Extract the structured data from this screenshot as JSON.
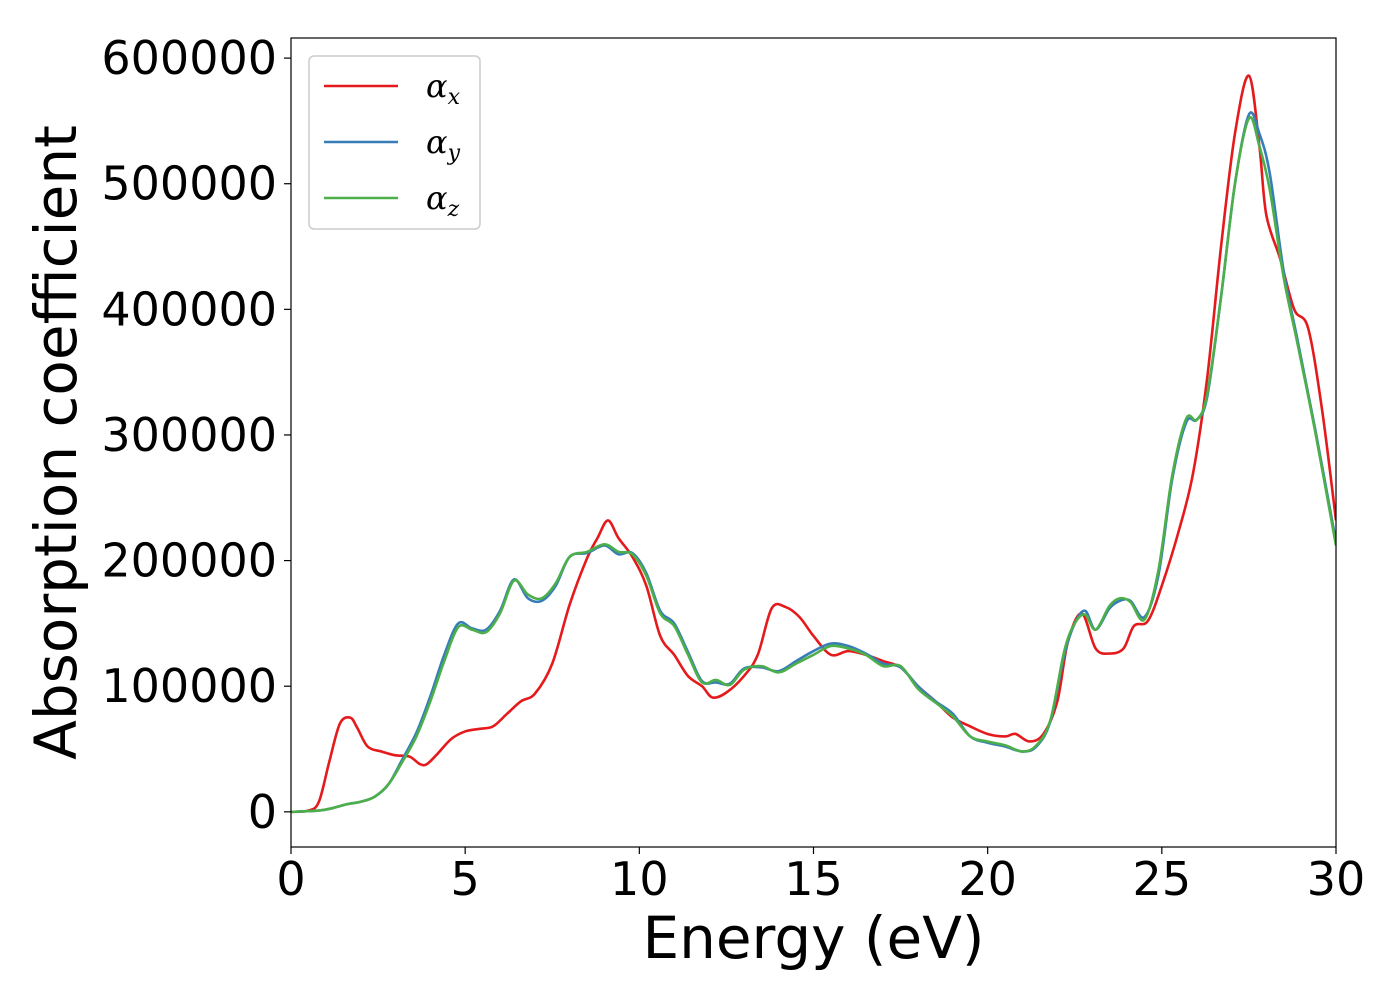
{
  "chart_data": {
    "type": "line",
    "xlabel": "Energy (eV)",
    "ylabel": "Absorption coefficient",
    "xlim": [
      0,
      30
    ],
    "ylim": [
      -28000,
      616000
    ],
    "x_ticks": [
      "0",
      "5",
      "10",
      "15",
      "20",
      "25",
      "30"
    ],
    "y_ticks": [
      "0",
      "100000",
      "200000",
      "300000",
      "400000",
      "500000",
      "600000"
    ],
    "grid": false,
    "legend_position": "top-left",
    "series": [
      {
        "name": "α",
        "subscript": "x",
        "color": "#e41a1c",
        "points": [
          [
            0,
            0
          ],
          [
            0.5,
            1000
          ],
          [
            0.8,
            8000
          ],
          [
            1.1,
            40000
          ],
          [
            1.4,
            70000
          ],
          [
            1.7,
            75000
          ],
          [
            1.9,
            67000
          ],
          [
            2.2,
            52000
          ],
          [
            2.6,
            48000
          ],
          [
            3,
            45000
          ],
          [
            3.4,
            44000
          ],
          [
            3.7,
            38000
          ],
          [
            3.9,
            38000
          ],
          [
            4.2,
            46000
          ],
          [
            4.6,
            58000
          ],
          [
            5.0,
            64000
          ],
          [
            5.4,
            66000
          ],
          [
            5.8,
            68000
          ],
          [
            6.2,
            78000
          ],
          [
            6.6,
            88000
          ],
          [
            7.0,
            94000
          ],
          [
            7.5,
            118000
          ],
          [
            8.0,
            165000
          ],
          [
            8.5,
            202000
          ],
          [
            8.8,
            218000
          ],
          [
            9.1,
            232000
          ],
          [
            9.4,
            218000
          ],
          [
            9.8,
            203000
          ],
          [
            10.2,
            180000
          ],
          [
            10.6,
            140000
          ],
          [
            11.0,
            125000
          ],
          [
            11.4,
            108000
          ],
          [
            11.8,
            100000
          ],
          [
            12.1,
            91000
          ],
          [
            12.5,
            95000
          ],
          [
            13.0,
            108000
          ],
          [
            13.4,
            125000
          ],
          [
            13.8,
            162000
          ],
          [
            14.2,
            163000
          ],
          [
            14.6,
            155000
          ],
          [
            15.0,
            140000
          ],
          [
            15.5,
            125000
          ],
          [
            16.0,
            128000
          ],
          [
            16.5,
            125000
          ],
          [
            17.0,
            120000
          ],
          [
            17.5,
            115000
          ],
          [
            18.0,
            100000
          ],
          [
            18.5,
            88000
          ],
          [
            19.0,
            75000
          ],
          [
            19.5,
            68000
          ],
          [
            20.0,
            62000
          ],
          [
            20.5,
            60000
          ],
          [
            20.8,
            62000
          ],
          [
            21.2,
            56000
          ],
          [
            21.6,
            62000
          ],
          [
            22.0,
            88000
          ],
          [
            22.3,
            135000
          ],
          [
            22.7,
            158000
          ],
          [
            23.1,
            130000
          ],
          [
            23.5,
            126000
          ],
          [
            23.9,
            130000
          ],
          [
            24.2,
            148000
          ],
          [
            24.6,
            152000
          ],
          [
            25.0,
            180000
          ],
          [
            25.5,
            225000
          ],
          [
            25.9,
            270000
          ],
          [
            26.3,
            345000
          ],
          [
            26.7,
            450000
          ],
          [
            27.1,
            540000
          ],
          [
            27.5,
            586000
          ],
          [
            27.8,
            530000
          ],
          [
            28.0,
            475000
          ],
          [
            28.4,
            440000
          ],
          [
            28.8,
            400000
          ],
          [
            29.2,
            385000
          ],
          [
            29.6,
            320000
          ],
          [
            30.0,
            232000
          ]
        ]
      },
      {
        "name": "α",
        "subscript": "y",
        "color": "#377eb8",
        "points": [
          [
            0,
            0
          ],
          [
            0.8,
            1000
          ],
          [
            1.2,
            3000
          ],
          [
            1.6,
            6000
          ],
          [
            2.0,
            8000
          ],
          [
            2.4,
            12000
          ],
          [
            2.8,
            22000
          ],
          [
            3.2,
            42000
          ],
          [
            3.6,
            63000
          ],
          [
            4.0,
            92000
          ],
          [
            4.4,
            125000
          ],
          [
            4.8,
            150000
          ],
          [
            5.2,
            146000
          ],
          [
            5.6,
            145000
          ],
          [
            6.0,
            160000
          ],
          [
            6.4,
            185000
          ],
          [
            6.8,
            170000
          ],
          [
            7.2,
            168000
          ],
          [
            7.6,
            180000
          ],
          [
            8.0,
            203000
          ],
          [
            8.5,
            206000
          ],
          [
            9.0,
            212000
          ],
          [
            9.4,
            205000
          ],
          [
            9.8,
            206000
          ],
          [
            10.2,
            190000
          ],
          [
            10.6,
            160000
          ],
          [
            11.0,
            150000
          ],
          [
            11.4,
            127000
          ],
          [
            11.8,
            104000
          ],
          [
            12.2,
            103000
          ],
          [
            12.6,
            102000
          ],
          [
            13.0,
            114000
          ],
          [
            13.5,
            115000
          ],
          [
            14.0,
            112000
          ],
          [
            14.5,
            120000
          ],
          [
            15.0,
            128000
          ],
          [
            15.5,
            134000
          ],
          [
            16.0,
            132000
          ],
          [
            16.5,
            126000
          ],
          [
            17.0,
            118000
          ],
          [
            17.5,
            115000
          ],
          [
            18.0,
            100000
          ],
          [
            18.5,
            88000
          ],
          [
            19.0,
            78000
          ],
          [
            19.5,
            60000
          ],
          [
            20.0,
            55000
          ],
          [
            20.5,
            52000
          ],
          [
            21.0,
            48000
          ],
          [
            21.4,
            52000
          ],
          [
            21.8,
            72000
          ],
          [
            22.2,
            125000
          ],
          [
            22.5,
            150000
          ],
          [
            22.8,
            160000
          ],
          [
            23.1,
            145000
          ],
          [
            23.5,
            162000
          ],
          [
            23.8,
            168000
          ],
          [
            24.1,
            168000
          ],
          [
            24.5,
            155000
          ],
          [
            24.9,
            188000
          ],
          [
            25.3,
            265000
          ],
          [
            25.7,
            310000
          ],
          [
            26.0,
            312000
          ],
          [
            26.3,
            330000
          ],
          [
            26.7,
            410000
          ],
          [
            27.1,
            500000
          ],
          [
            27.5,
            555000
          ],
          [
            27.8,
            540000
          ],
          [
            28.1,
            508000
          ],
          [
            28.5,
            430000
          ],
          [
            28.9,
            375000
          ],
          [
            29.4,
            305000
          ],
          [
            30.0,
            215000
          ]
        ]
      },
      {
        "name": "α",
        "subscript": "z",
        "color": "#4daf4a",
        "points": [
          [
            0,
            0
          ],
          [
            0.8,
            1000
          ],
          [
            1.2,
            3000
          ],
          [
            1.6,
            6000
          ],
          [
            2.0,
            8000
          ],
          [
            2.4,
            12000
          ],
          [
            2.8,
            22000
          ],
          [
            3.2,
            40000
          ],
          [
            3.6,
            60000
          ],
          [
            4.0,
            88000
          ],
          [
            4.4,
            120000
          ],
          [
            4.8,
            147000
          ],
          [
            5.2,
            145000
          ],
          [
            5.6,
            143000
          ],
          [
            6.0,
            158000
          ],
          [
            6.4,
            184000
          ],
          [
            6.8,
            173000
          ],
          [
            7.2,
            170000
          ],
          [
            7.6,
            182000
          ],
          [
            8.0,
            203000
          ],
          [
            8.5,
            207000
          ],
          [
            9.0,
            213000
          ],
          [
            9.4,
            207000
          ],
          [
            9.8,
            205000
          ],
          [
            10.2,
            188000
          ],
          [
            10.6,
            158000
          ],
          [
            11.0,
            148000
          ],
          [
            11.4,
            125000
          ],
          [
            11.8,
            103000
          ],
          [
            12.2,
            105000
          ],
          [
            12.6,
            101000
          ],
          [
            13.0,
            113000
          ],
          [
            13.5,
            116000
          ],
          [
            14.0,
            111000
          ],
          [
            14.5,
            118000
          ],
          [
            15.0,
            125000
          ],
          [
            15.5,
            132000
          ],
          [
            16.0,
            130000
          ],
          [
            16.5,
            125000
          ],
          [
            17.0,
            116000
          ],
          [
            17.5,
            116000
          ],
          [
            18.0,
            98000
          ],
          [
            18.5,
            87000
          ],
          [
            19.0,
            76000
          ],
          [
            19.5,
            60000
          ],
          [
            20.0,
            56000
          ],
          [
            20.5,
            53000
          ],
          [
            21.0,
            48000
          ],
          [
            21.4,
            53000
          ],
          [
            21.8,
            73000
          ],
          [
            22.2,
            128000
          ],
          [
            22.5,
            150000
          ],
          [
            22.8,
            157000
          ],
          [
            23.1,
            145000
          ],
          [
            23.5,
            164000
          ],
          [
            23.8,
            170000
          ],
          [
            24.1,
            167000
          ],
          [
            24.5,
            153000
          ],
          [
            24.9,
            192000
          ],
          [
            25.3,
            268000
          ],
          [
            25.7,
            313000
          ],
          [
            26.0,
            312000
          ],
          [
            26.3,
            332000
          ],
          [
            26.7,
            410000
          ],
          [
            27.1,
            500000
          ],
          [
            27.5,
            552000
          ],
          [
            27.8,
            530000
          ],
          [
            28.1,
            495000
          ],
          [
            28.5,
            425000
          ],
          [
            28.9,
            372000
          ],
          [
            29.4,
            303000
          ],
          [
            30.0,
            212000
          ]
        ]
      }
    ]
  }
}
